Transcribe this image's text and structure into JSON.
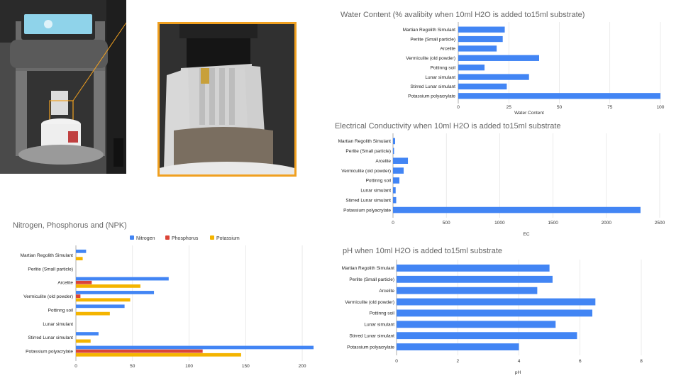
{
  "colors": {
    "nitrogen": "#4285f4",
    "phosphorus": "#db4437",
    "potassium": "#f4b400",
    "accent_frame": "#f0a020"
  },
  "photos": [
    {
      "label": "device-photo",
      "depicts": "bioprinter-style analyzer instrument with touchscreen"
    },
    {
      "label": "closeup-photo",
      "depicts": "sensor probes inserted into substrate sample bag"
    }
  ],
  "chart_data": [
    {
      "type": "bar",
      "orientation": "horizontal",
      "title": "Water Content (% avalibity when 10ml H2O is added to15ml substrate)",
      "xlabel": "Water Content",
      "ylabel": "",
      "xlim": [
        0,
        100
      ],
      "ticks": [
        0,
        25,
        50,
        75,
        100
      ],
      "categories": [
        "Martian Regolith Simulant",
        "Perlite (Small particle)",
        "Arcelite",
        "Vermiculite (old powder)",
        "Pottinng soil",
        "Lunar simulant",
        "Stirred Lunar simulant",
        "Potassium polyacrylate"
      ],
      "series": [
        {
          "values": [
            23,
            22,
            19,
            40,
            13,
            35,
            24,
            100
          ]
        }
      ],
      "grid": true
    },
    {
      "type": "bar",
      "orientation": "horizontal",
      "title": "Electrical Conductivity when 10ml H2O is added to15ml substrate",
      "xlabel": "EC",
      "ylabel": "",
      "xlim": [
        0,
        2500
      ],
      "ticks": [
        0,
        500,
        1000,
        1500,
        2000,
        2500
      ],
      "categories": [
        "Martian Regolith Simulant",
        "Perlite (Small particle)",
        "Arcelite",
        "Vermiculite (old powder)",
        "Pottinng soil",
        "Lunar simulant",
        "Stirred Lunar simulant",
        "Potassium polyacrylate"
      ],
      "series": [
        {
          "values": [
            20,
            5,
            140,
            100,
            60,
            25,
            30,
            2320
          ]
        }
      ],
      "grid": true
    },
    {
      "type": "bar",
      "orientation": "horizontal",
      "title": "Nitrogen, Phosphorus and  (NPK)",
      "xlabel": "",
      "ylabel": "",
      "xlim": [
        0,
        210
      ],
      "ticks": [
        0,
        50,
        100,
        150,
        200
      ],
      "legend_position": "top",
      "categories": [
        "Martian Regolith Simulant",
        "Perlite (Small particle)",
        "Arcelite",
        "Vermiculite (old powder)",
        "Pottinng soil",
        "Lunar simulant",
        "Stirred Lunar simulant",
        "Potassium polyacrylate"
      ],
      "series": [
        {
          "name": "Nitrogen",
          "values": [
            9,
            0,
            82,
            69,
            43,
            0,
            20,
            210
          ]
        },
        {
          "name": "Phosphorus",
          "values": [
            0,
            0,
            14,
            4,
            0,
            0,
            0,
            112
          ]
        },
        {
          "name": "Potassium",
          "values": [
            6,
            0,
            57,
            48,
            30,
            0,
            13,
            146
          ]
        }
      ],
      "grid": true
    },
    {
      "type": "bar",
      "orientation": "horizontal",
      "title": "pH when 10ml H2O is added to15ml substrate",
      "xlabel": "pH",
      "ylabel": "",
      "xlim": [
        0,
        8
      ],
      "ticks": [
        0,
        2,
        4,
        6,
        8
      ],
      "categories": [
        "Martian Regolith Simulant",
        "Perlite (Small particle)",
        "Arcelite",
        "Vermiculite (old powder)",
        "Pottinng soil",
        "Lunar simulant",
        "Stirred Lunar simulant",
        "Potassium polyacrylate"
      ],
      "series": [
        {
          "values": [
            5.0,
            5.1,
            4.6,
            6.5,
            6.4,
            5.2,
            5.9,
            4.0
          ]
        }
      ],
      "grid": true
    }
  ]
}
